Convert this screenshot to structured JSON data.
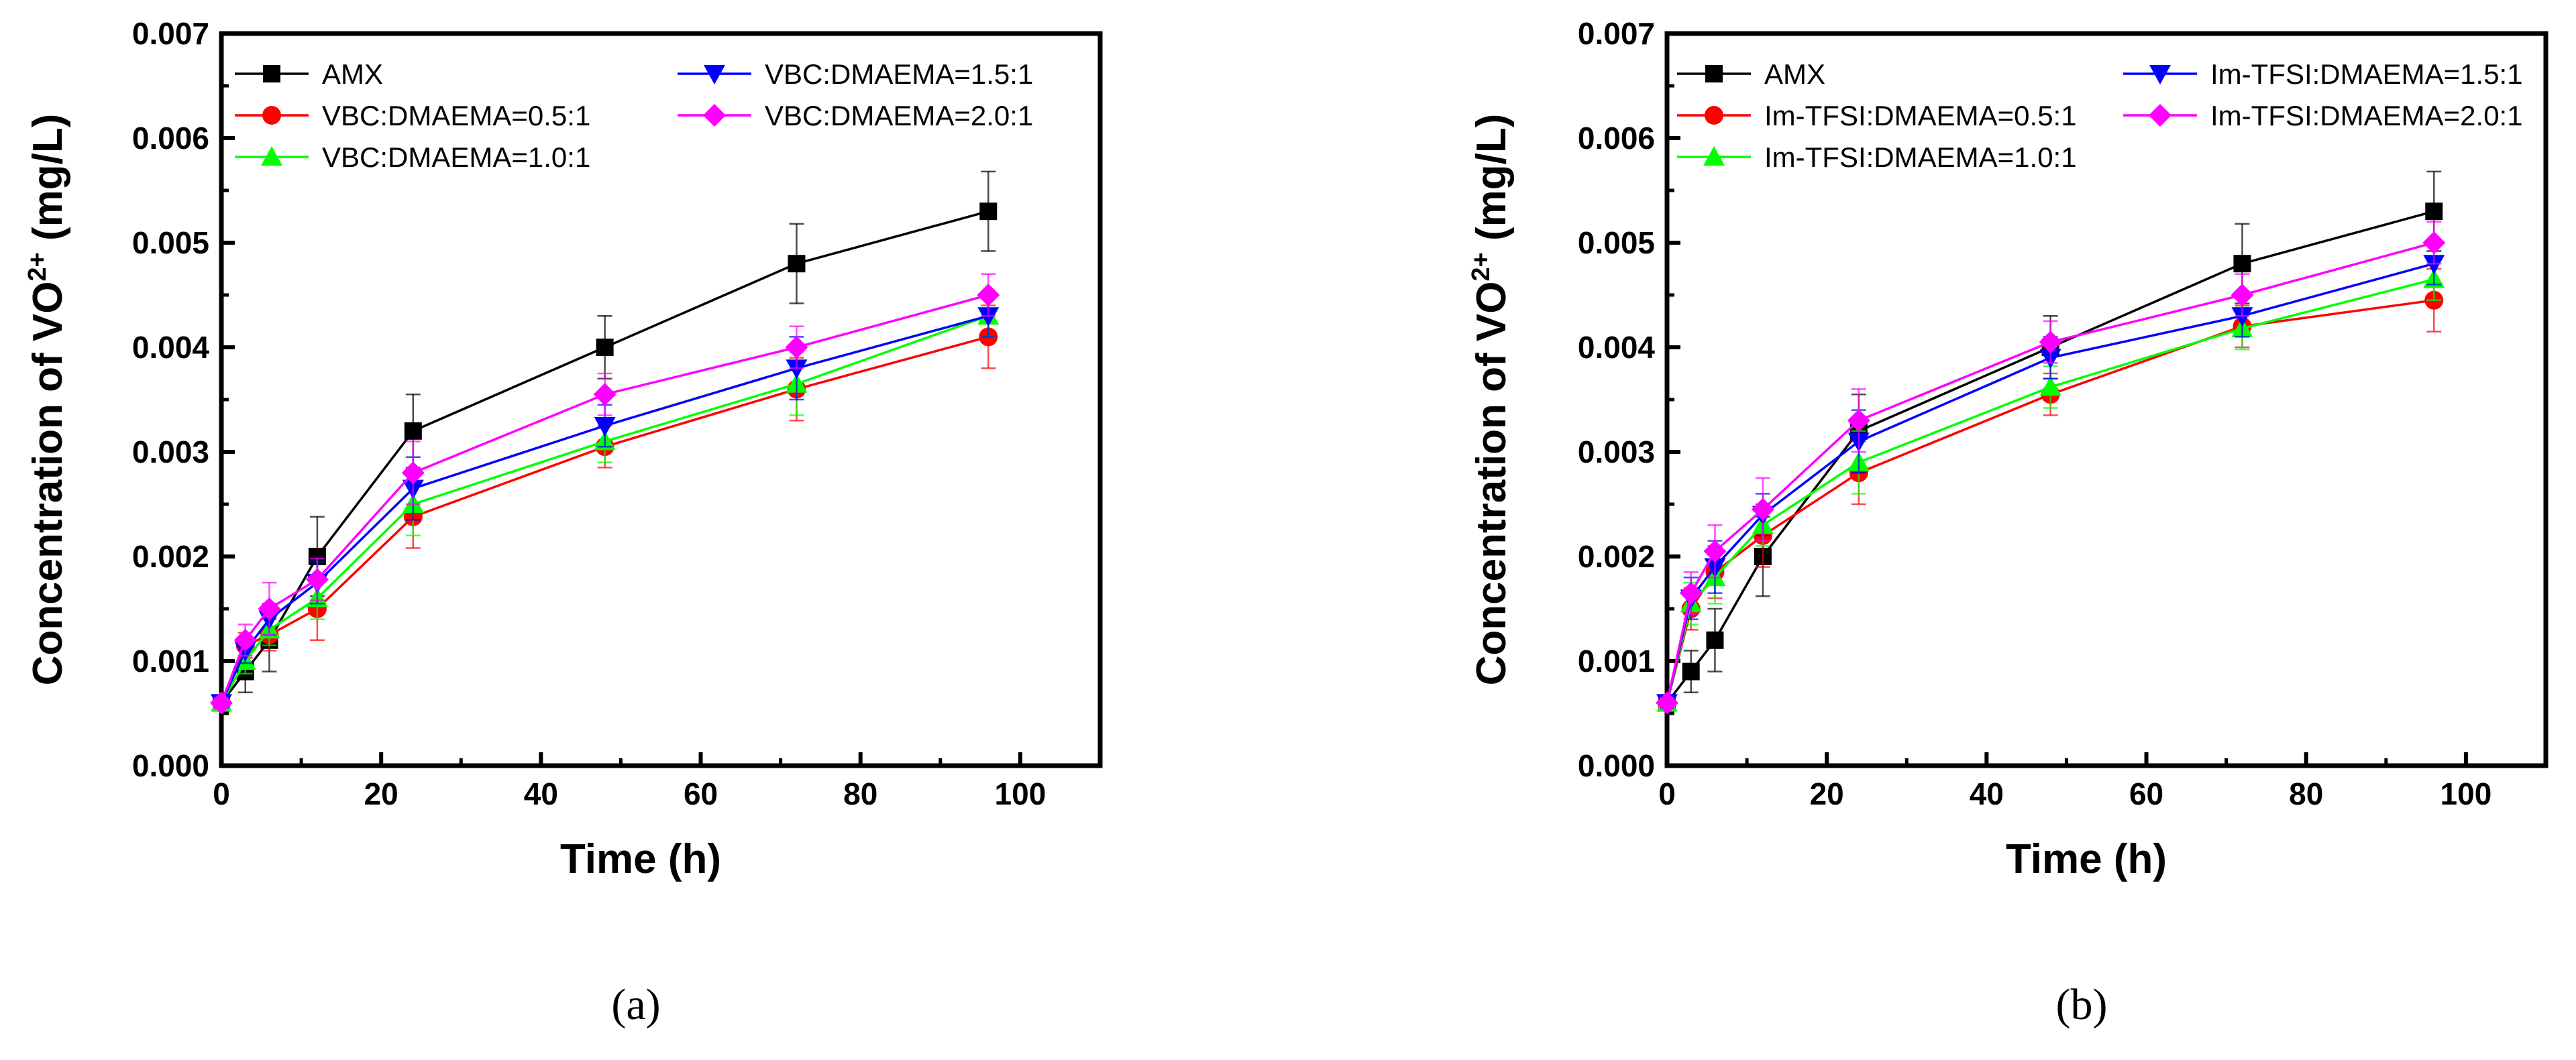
{
  "chart_data": [
    {
      "type": "line",
      "panel": "(a)",
      "xlabel": "Time (h)",
      "ylabel": "Concentration of VO",
      "ylabel_sup": "2+",
      "ylabel_unit": " (mg/L)",
      "xlim": [
        0,
        110
      ],
      "ylim": [
        0,
        0.007
      ],
      "xticks": [
        "0",
        "20",
        "40",
        "60",
        "80",
        "100"
      ],
      "xtick_values": [
        0,
        20,
        40,
        60,
        80,
        100
      ],
      "yticks": [
        "0.000",
        "0.001",
        "0.002",
        "0.003",
        "0.004",
        "0.005",
        "0.006",
        "0.007"
      ],
      "ytick_values": [
        0,
        0.001,
        0.002,
        0.003,
        0.004,
        0.005,
        0.006,
        0.007
      ],
      "legend_position": "top-left, two columns",
      "x": [
        0,
        3,
        6,
        12,
        24,
        48,
        72,
        96
      ],
      "series": [
        {
          "name": "AMX",
          "color": "#000000",
          "marker": "square",
          "values": [
            0.0006,
            0.0009,
            0.0012,
            0.002,
            0.0032,
            0.004,
            0.0048,
            0.0053
          ],
          "errors": [
            5e-05,
            0.0002,
            0.0003,
            0.00038,
            0.00035,
            0.0003,
            0.00038,
            0.00038
          ]
        },
        {
          "name": "VBC:DMAEMA=0.5:1",
          "color": "#ff0000",
          "marker": "circle",
          "values": [
            0.0006,
            0.00115,
            0.00125,
            0.0015,
            0.00238,
            0.00305,
            0.0036,
            0.0041
          ],
          "errors": [
            5e-05,
            0.00012,
            0.00015,
            0.0003,
            0.0003,
            0.0002,
            0.0003,
            0.0003
          ]
        },
        {
          "name": "VBC:DMAEMA=1.0:1",
          "color": "#00ff00",
          "marker": "triangle-up",
          "values": [
            0.0006,
            0.001,
            0.0013,
            0.0016,
            0.0025,
            0.0031,
            0.00365,
            0.0043
          ],
          "errors": [
            5e-05,
            0.00012,
            0.00015,
            0.0002,
            0.0003,
            0.0002,
            0.0003,
            0.0002
          ]
        },
        {
          "name": "VBC:DMAEMA=1.5:1",
          "color": "#0000ff",
          "marker": "triangle-down",
          "values": [
            0.0006,
            0.0011,
            0.0014,
            0.00175,
            0.00265,
            0.00325,
            0.0038,
            0.0043
          ],
          "errors": [
            5e-05,
            0.00012,
            0.00015,
            0.0002,
            0.0003,
            0.0002,
            0.0003,
            0.0002
          ]
        },
        {
          "name": "VBC:DMAEMA=2.0:1",
          "color": "#ff00ff",
          "marker": "diamond",
          "values": [
            0.0006,
            0.0012,
            0.0015,
            0.00178,
            0.0028,
            0.00355,
            0.004,
            0.0045
          ],
          "errors": [
            5e-05,
            0.00015,
            0.00025,
            0.0002,
            0.0003,
            0.0002,
            0.0002,
            0.0002
          ]
        }
      ]
    },
    {
      "type": "line",
      "panel": "(b)",
      "xlabel": "Time (h)",
      "ylabel": "Concentration of VO",
      "ylabel_sup": "2+",
      "ylabel_unit": " (mg/L)",
      "xlim": [
        0,
        110
      ],
      "ylim": [
        0,
        0.007
      ],
      "xticks": [
        "0",
        "20",
        "40",
        "60",
        "80",
        "100"
      ],
      "xtick_values": [
        0,
        20,
        40,
        60,
        80,
        100
      ],
      "yticks": [
        "0.000",
        "0.001",
        "0.002",
        "0.003",
        "0.004",
        "0.005",
        "0.006",
        "0.007"
      ],
      "ytick_values": [
        0,
        0.001,
        0.002,
        0.003,
        0.004,
        0.005,
        0.006,
        0.007
      ],
      "legend_position": "top-left, two columns",
      "x": [
        0,
        3,
        6,
        12,
        24,
        48,
        72,
        96
      ],
      "series": [
        {
          "name": "AMX",
          "color": "#000000",
          "marker": "square",
          "values": [
            0.0006,
            0.0009,
            0.0012,
            0.002,
            0.0032,
            0.004,
            0.0048,
            0.0053
          ],
          "errors": [
            5e-05,
            0.0002,
            0.0003,
            0.00038,
            0.00035,
            0.0003,
            0.00038,
            0.00038
          ]
        },
        {
          "name": "Im-TFSI:DMAEMA=0.5:1",
          "color": "#ff0000",
          "marker": "circle",
          "values": [
            0.0006,
            0.0015,
            0.00185,
            0.0022,
            0.0028,
            0.00355,
            0.0042,
            0.00445
          ],
          "errors": [
            5e-05,
            0.0002,
            0.00025,
            0.0003,
            0.0003,
            0.0002,
            0.0002,
            0.0003
          ]
        },
        {
          "name": "Im-TFSI:DMAEMA=1.0:1",
          "color": "#00ff00",
          "marker": "triangle-up",
          "values": [
            0.0006,
            0.00155,
            0.0018,
            0.0023,
            0.0029,
            0.00362,
            0.00418,
            0.00465
          ],
          "errors": [
            5e-05,
            0.0002,
            0.00025,
            0.0002,
            0.0003,
            0.0002,
            0.0002,
            0.0002
          ]
        },
        {
          "name": "Im-TFSI:DMAEMA=1.5:1",
          "color": "#0000ff",
          "marker": "triangle-down",
          "values": [
            0.0006,
            0.0016,
            0.0019,
            0.0024,
            0.0031,
            0.0039,
            0.0043,
            0.0048
          ],
          "errors": [
            5e-05,
            0.0002,
            0.00025,
            0.0002,
            0.0003,
            0.0002,
            0.0002,
            0.0002
          ]
        },
        {
          "name": "Im-TFSI:DMAEMA=2.0:1",
          "color": "#ff00ff",
          "marker": "diamond",
          "values": [
            0.0006,
            0.00165,
            0.00205,
            0.00245,
            0.0033,
            0.00405,
            0.0045,
            0.005
          ],
          "errors": [
            5e-05,
            0.0002,
            0.00025,
            0.0003,
            0.0003,
            0.0002,
            0.0002,
            0.0002
          ]
        }
      ]
    }
  ]
}
